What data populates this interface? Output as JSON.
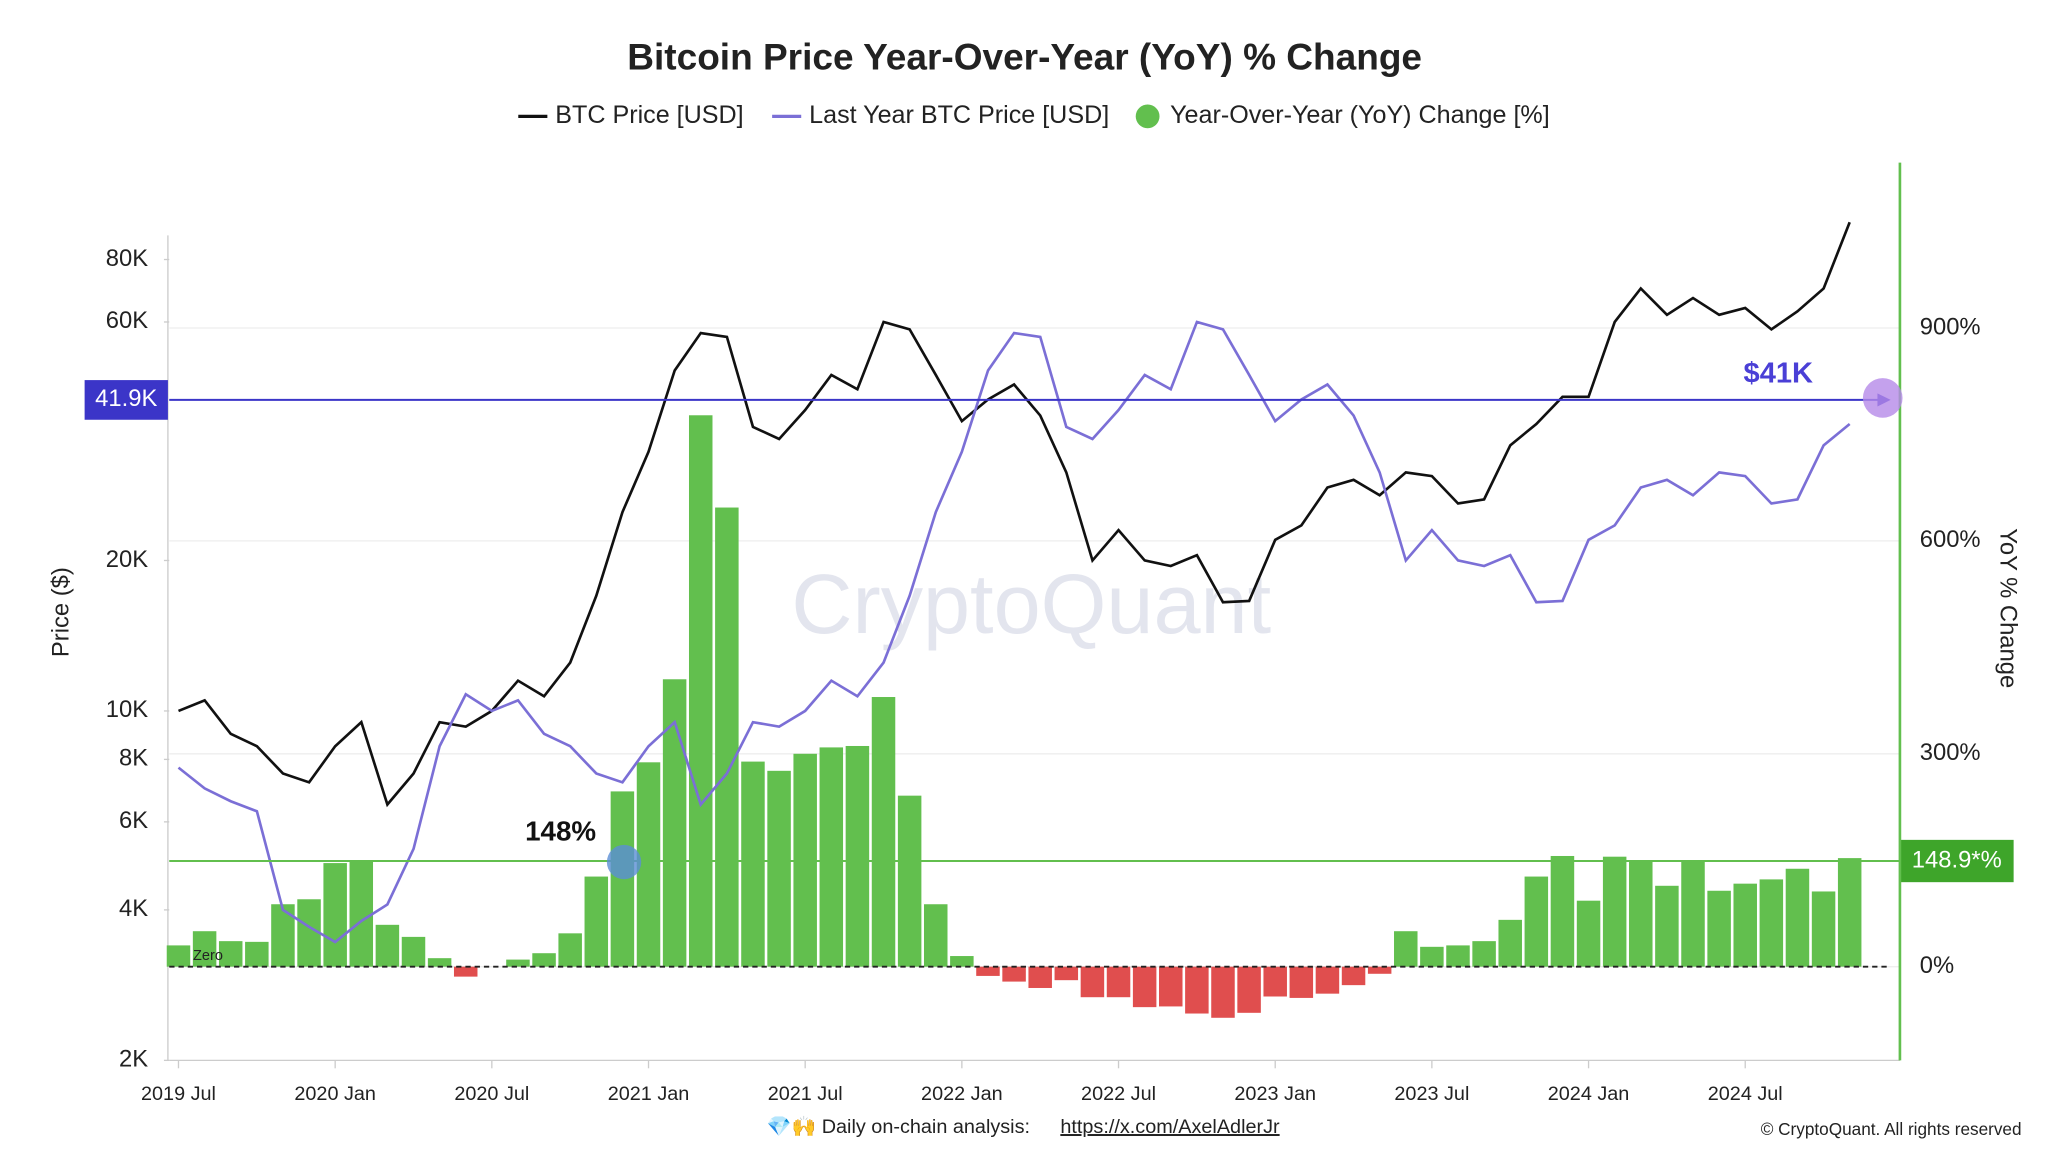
{
  "chart_data": {
    "type": "combo",
    "title": "Bitcoin Price Year-Over-Year (YoY) % Change",
    "y_label": "Price ($)",
    "y2_label": "YoY % Change",
    "log_y": true,
    "grid": true,
    "legend": "top",
    "x": [
      "2019-07",
      "2019-08",
      "2019-09",
      "2019-10",
      "2019-11",
      "2019-12",
      "2020-01",
      "2020-02",
      "2020-03",
      "2020-04",
      "2020-05",
      "2020-06",
      "2020-07",
      "2020-08",
      "2020-09",
      "2020-10",
      "2020-11",
      "2020-12",
      "2021-01",
      "2021-02",
      "2021-03",
      "2021-04",
      "2021-05",
      "2021-06",
      "2021-07",
      "2021-08",
      "2021-09",
      "2021-10",
      "2021-11",
      "2021-12",
      "2022-01",
      "2022-02",
      "2022-03",
      "2022-04",
      "2022-05",
      "2022-06",
      "2022-07",
      "2022-08",
      "2022-09",
      "2022-10",
      "2022-11",
      "2022-12",
      "2023-01",
      "2023-02",
      "2023-03",
      "2023-04",
      "2023-05",
      "2023-06",
      "2023-07",
      "2023-08",
      "2023-09",
      "2023-10",
      "2023-11",
      "2023-12",
      "2024-01",
      "2024-02",
      "2024-03",
      "2024-04",
      "2024-05",
      "2024-06",
      "2024-07",
      "2024-08",
      "2024-09",
      "2024-10",
      "2024-11"
    ],
    "xticks": [
      {
        "value": "2019-07",
        "label": "2019 Jul"
      },
      {
        "value": "2020-01",
        "label": "2020 Jan"
      },
      {
        "value": "2020-07",
        "label": "2020 Jul"
      },
      {
        "value": "2021-01",
        "label": "2021 Jan"
      },
      {
        "value": "2021-07",
        "label": "2021 Jul"
      },
      {
        "value": "2022-01",
        "label": "2022 Jan"
      },
      {
        "value": "2022-07",
        "label": "2022 Jul"
      },
      {
        "value": "2023-01",
        "label": "2023 Jan"
      },
      {
        "value": "2023-07",
        "label": "2023 Jul"
      },
      {
        "value": "2024-01",
        "label": "2024 Jan"
      },
      {
        "value": "2024-07",
        "label": "2024 Jul"
      }
    ],
    "ylim": [
      2000,
      125000
    ],
    "yticks": [
      {
        "value": 2000,
        "label": "2K"
      },
      {
        "value": 4000,
        "label": "4K"
      },
      {
        "value": 6000,
        "label": "6K"
      },
      {
        "value": 8000,
        "label": "8K"
      },
      {
        "value": 10000,
        "label": "10K"
      },
      {
        "value": 20000,
        "label": "20K"
      },
      {
        "value": 60000,
        "label": "60K"
      },
      {
        "value": 80000,
        "label": "80K"
      }
    ],
    "y2lim": [
      -132,
      1133
    ],
    "y2ticks": [
      {
        "value": 0,
        "label": "0%"
      },
      {
        "value": 300,
        "label": "300%"
      },
      {
        "value": 600,
        "label": "600%"
      },
      {
        "value": 900,
        "label": "900%"
      }
    ],
    "series": [
      {
        "name": "BTC Price [USD]",
        "type": "line",
        "color": "#111111",
        "values": [
          10000,
          10500,
          9000,
          8500,
          7500,
          7200,
          8500,
          9500,
          6500,
          7500,
          9500,
          9300,
          10000,
          11500,
          10700,
          12500,
          17000,
          25000,
          33000,
          48000,
          57000,
          56000,
          37000,
          35000,
          40000,
          47000,
          44000,
          60000,
          58000,
          47000,
          38000,
          42000,
          45000,
          39000,
          30000,
          20000,
          23000,
          20000,
          19500,
          20500,
          16500,
          16600,
          22000,
          23500,
          28000,
          29000,
          27000,
          30000,
          29500,
          26000,
          26500,
          34000,
          37500,
          42500,
          42500,
          60000,
          70000,
          62000,
          67000,
          62000,
          64000,
          58000,
          63000,
          70000,
          95000
        ]
      },
      {
        "name": "Last Year BTC Price [USD]",
        "type": "line",
        "color": "#7b6fd6",
        "values": [
          7700,
          7000,
          6600,
          6300,
          4000,
          3700,
          3450,
          3800,
          4100,
          5300,
          8500,
          10800,
          10000,
          10500,
          9000,
          8500,
          7500,
          7200,
          8500,
          9500,
          6500,
          7500,
          9500,
          9300,
          10000,
          11500,
          10700,
          12500,
          17000,
          25000,
          33000,
          48000,
          57000,
          56000,
          37000,
          35000,
          40000,
          47000,
          44000,
          60000,
          58000,
          47000,
          38000,
          42000,
          45000,
          39000,
          30000,
          20000,
          23000,
          20000,
          19500,
          20500,
          16500,
          16600,
          22000,
          23500,
          28000,
          29000,
          27000,
          30000,
          29500,
          26000,
          26500,
          34000,
          37500
        ]
      },
      {
        "name": "Year-Over-Year (YoY) Change [%]",
        "type": "bar",
        "axis": "y2",
        "color": "#62bf4e",
        "negative_color": "#e04e4e",
        "values": [
          30,
          50,
          36,
          35,
          88,
          95,
          146,
          150,
          59,
          42,
          12,
          -14,
          0,
          10,
          19,
          47,
          127,
          247,
          288,
          405,
          777,
          647,
          289,
          276,
          300,
          309,
          311,
          380,
          241,
          88,
          15,
          -13,
          -21,
          -30,
          -19,
          -43,
          -43,
          -57,
          -56,
          -66,
          -72,
          -65,
          -42,
          -44,
          -38,
          -26,
          -10,
          50,
          28,
          30,
          36,
          66,
          127,
          156,
          93,
          155,
          150,
          114,
          148,
          107,
          117,
          123,
          138,
          106,
          153
        ]
      }
    ],
    "price_reference": {
      "value": 41900,
      "label": "41.9K"
    },
    "yoy_reference": {
      "value": 148.9,
      "label": "148.9*%"
    },
    "annotations": [
      "$41K",
      "148%"
    ],
    "zero_label": "Zero",
    "watermark": "CryptoQuant",
    "footer": {
      "prefix": "💎🙌 Daily on-chain analysis:",
      "link": "https://x.com/AxelAdlerJr",
      "copyright": "© CryptoQuant. All rights reserved"
    }
  }
}
